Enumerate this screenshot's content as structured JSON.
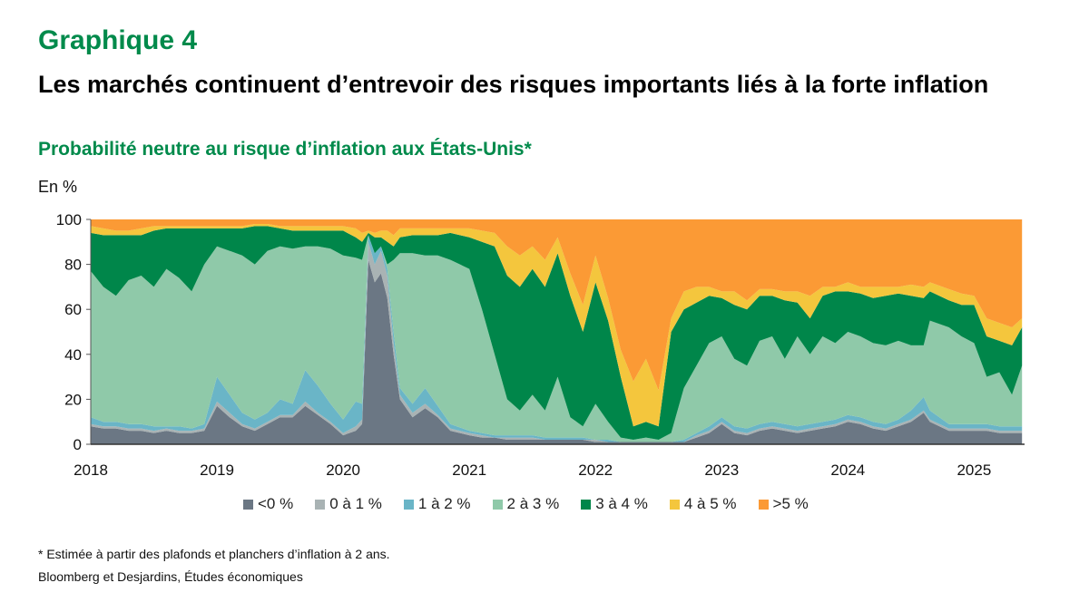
{
  "header": {
    "kicker": "Graphique 4",
    "title": "Les marchés continuent d’entrevoir des risques importants liés à la forte inflation",
    "subtitle": "Probabilité neutre au risque d’inflation aux États-Unis*",
    "unit": "En %"
  },
  "footer": {
    "note": "* Estimée à partir des plafonds et planchers d’inflation à 2 ans.",
    "source": "Bloomberg et Desjardins, Études économiques"
  },
  "chart_data": {
    "type": "area",
    "stacked": true,
    "title": "Probabilité neutre au risque d’inflation aux États-Unis*",
    "ylabel": "En %",
    "xlabel": "",
    "ylim": [
      0,
      100
    ],
    "xlim": [
      2018.0,
      2025.4
    ],
    "yticks": [
      "0",
      "20",
      "40",
      "60",
      "80",
      "100"
    ],
    "ytick_values": [
      0,
      20,
      40,
      60,
      80,
      100
    ],
    "xticks": [
      "2018",
      "2019",
      "2020",
      "2021",
      "2022",
      "2023",
      "2024",
      "2025"
    ],
    "xtick_values": [
      2018,
      2019,
      2020,
      2021,
      2022,
      2023,
      2024,
      2025
    ],
    "grid": false,
    "legend_position": "bottom",
    "x": [
      2018.0,
      2018.1,
      2018.2,
      2018.3,
      2018.4,
      2018.5,
      2018.6,
      2018.7,
      2018.8,
      2018.9,
      2019.0,
      2019.1,
      2019.2,
      2019.3,
      2019.4,
      2019.5,
      2019.6,
      2019.7,
      2019.8,
      2019.9,
      2020.0,
      2020.1,
      2020.15,
      2020.2,
      2020.25,
      2020.3,
      2020.35,
      2020.4,
      2020.45,
      2020.55,
      2020.65,
      2020.75,
      2020.85,
      2021.0,
      2021.1,
      2021.2,
      2021.3,
      2021.4,
      2021.5,
      2021.6,
      2021.7,
      2021.8,
      2021.9,
      2022.0,
      2022.1,
      2022.2,
      2022.3,
      2022.4,
      2022.5,
      2022.6,
      2022.7,
      2022.8,
      2022.9,
      2023.0,
      2023.1,
      2023.2,
      2023.3,
      2023.4,
      2023.5,
      2023.6,
      2023.7,
      2023.8,
      2023.9,
      2024.0,
      2024.1,
      2024.2,
      2024.3,
      2024.4,
      2024.5,
      2024.6,
      2024.65,
      2024.8,
      2024.9,
      2025.0,
      2025.1,
      2025.2,
      2025.3,
      2025.38
    ],
    "series": [
      {
        "name": "<0 %",
        "color": "#6b7784",
        "values": [
          8,
          7,
          7,
          6,
          6,
          5,
          6,
          5,
          5,
          6,
          17,
          12,
          8,
          6,
          9,
          12,
          12,
          17,
          13,
          9,
          4,
          6,
          9,
          82,
          72,
          76,
          65,
          40,
          20,
          12,
          16,
          12,
          6,
          4,
          3,
          3,
          2,
          2,
          2,
          2,
          2,
          2,
          2,
          1,
          1,
          1,
          1,
          1,
          1,
          1,
          1,
          3,
          5,
          9,
          5,
          4,
          6,
          7,
          6,
          5,
          6,
          7,
          8,
          10,
          9,
          7,
          6,
          8,
          10,
          14,
          10,
          6,
          6,
          6,
          6,
          5,
          5,
          5
        ]
      },
      {
        "name": "0 à 1 %",
        "color": "#a9b3b4",
        "values": [
          1,
          1,
          1,
          1,
          1,
          1,
          1,
          1,
          1,
          1,
          2,
          2,
          1,
          1,
          1,
          1,
          1,
          2,
          1,
          1,
          1,
          2,
          2,
          8,
          8,
          10,
          10,
          5,
          2,
          2,
          2,
          1,
          1,
          1,
          1,
          0,
          1,
          1,
          1,
          0,
          0,
          0,
          0,
          1,
          0,
          0,
          0,
          0,
          0,
          0,
          0,
          1,
          1,
          1,
          1,
          1,
          1,
          1,
          1,
          1,
          1,
          1,
          1,
          1,
          1,
          1,
          1,
          1,
          1,
          1,
          1,
          1,
          1,
          1,
          1,
          1,
          1,
          1
        ]
      },
      {
        "name": "1 à 2 %",
        "color": "#6ab5c7",
        "values": [
          3,
          2,
          2,
          2,
          2,
          2,
          1,
          2,
          1,
          2,
          11,
          8,
          5,
          4,
          4,
          7,
          5,
          14,
          12,
          8,
          6,
          11,
          7,
          3,
          5,
          2,
          3,
          5,
          3,
          4,
          7,
          4,
          2,
          1,
          1,
          1,
          1,
          1,
          1,
          1,
          1,
          1,
          1,
          0,
          1,
          0,
          0,
          0,
          0,
          0,
          1,
          1,
          2,
          2,
          2,
          2,
          2,
          2,
          2,
          2,
          2,
          2,
          2,
          2,
          2,
          2,
          2,
          2,
          4,
          6,
          4,
          2,
          2,
          2,
          2,
          2,
          2,
          2
        ]
      },
      {
        "name": "2 à 3 %",
        "color": "#8fc9a9",
        "values": [
          65,
          60,
          56,
          64,
          66,
          62,
          70,
          66,
          61,
          71,
          58,
          64,
          70,
          69,
          72,
          68,
          69,
          55,
          62,
          69,
          73,
          64,
          64,
          0,
          0,
          0,
          2,
          32,
          60,
          67,
          59,
          67,
          73,
          72,
          55,
          36,
          16,
          11,
          18,
          12,
          27,
          9,
          5,
          16,
          8,
          2,
          1,
          2,
          1,
          4,
          23,
          30,
          37,
          36,
          30,
          28,
          37,
          38,
          29,
          40,
          31,
          38,
          34,
          37,
          36,
          35,
          35,
          35,
          29,
          23,
          40,
          43,
          39,
          36,
          21,
          24,
          14,
          27
        ]
      },
      {
        "name": "3 à 4 %",
        "color": "#00864a",
        "values": [
          17,
          23,
          27,
          20,
          18,
          25,
          18,
          22,
          28,
          16,
          8,
          10,
          12,
          17,
          11,
          8,
          8,
          7,
          7,
          8,
          11,
          9,
          8,
          1,
          7,
          4,
          10,
          6,
          7,
          8,
          9,
          9,
          12,
          14,
          30,
          48,
          55,
          55,
          56,
          55,
          55,
          54,
          42,
          54,
          45,
          27,
          6,
          7,
          6,
          45,
          35,
          28,
          21,
          17,
          24,
          25,
          20,
          18,
          26,
          15,
          16,
          18,
          23,
          18,
          19,
          20,
          22,
          21,
          22,
          21,
          13,
          12,
          14,
          17,
          18,
          14,
          22,
          17
        ]
      },
      {
        "name": "4 à 5 %",
        "color": "#f4c63d",
        "values": [
          3,
          3,
          2,
          2,
          3,
          2,
          1,
          1,
          1,
          1,
          1,
          1,
          1,
          1,
          1,
          1,
          2,
          2,
          2,
          2,
          2,
          4,
          4,
          1,
          2,
          3,
          5,
          5,
          4,
          3,
          3,
          3,
          2,
          4,
          5,
          6,
          13,
          14,
          10,
          12,
          7,
          10,
          12,
          12,
          10,
          12,
          20,
          28,
          16,
          6,
          8,
          7,
          4,
          3,
          6,
          4,
          3,
          3,
          4,
          5,
          10,
          4,
          2,
          4,
          3,
          5,
          4,
          3,
          5,
          5,
          4,
          5,
          5,
          4,
          8,
          8,
          8,
          4
        ]
      },
      {
        "name": ">5 %",
        "color": "#fb9a35",
        "values": [
          3,
          4,
          5,
          5,
          4,
          3,
          3,
          3,
          3,
          3,
          3,
          3,
          3,
          2,
          2,
          3,
          3,
          3,
          3,
          3,
          3,
          4,
          6,
          5,
          6,
          5,
          5,
          7,
          4,
          4,
          4,
          4,
          4,
          4,
          5,
          6,
          12,
          16,
          12,
          18,
          8,
          24,
          38,
          16,
          35,
          58,
          72,
          62,
          76,
          44,
          32,
          30,
          30,
          32,
          32,
          36,
          31,
          31,
          32,
          32,
          34,
          30,
          30,
          28,
          30,
          30,
          30,
          30,
          29,
          30,
          28,
          31,
          33,
          34,
          44,
          46,
          48,
          44
        ]
      }
    ]
  }
}
